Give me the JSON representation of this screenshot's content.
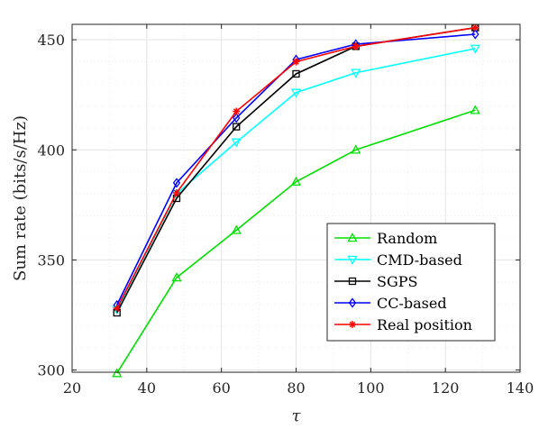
{
  "chart_data": {
    "type": "line",
    "xlabel": "τ",
    "ylabel": "Sum rate (bits/s/Hz)",
    "xlim": [
      20,
      140
    ],
    "ylim": [
      299,
      457
    ],
    "xticks": [
      20,
      40,
      60,
      80,
      100,
      120,
      140
    ],
    "yticks": [
      300,
      350,
      400,
      450
    ],
    "grid": true,
    "legend_position": "bottom-right",
    "x": [
      32,
      48,
      64,
      80,
      96,
      128
    ],
    "series": [
      {
        "name": "Random",
        "color": "#00e000",
        "marker": "triangle-up",
        "values": [
          298.5,
          342.0,
          363.5,
          385.5,
          400.0,
          418.0
        ]
      },
      {
        "name": "CMD-based",
        "color": "#00ffff",
        "marker": "triangle-down",
        "values": [
          327.5,
          380.0,
          403.5,
          426.0,
          435.0,
          446.0
        ]
      },
      {
        "name": "SGPS",
        "color": "#000000",
        "marker": "square",
        "values": [
          326.0,
          378.0,
          410.5,
          434.5,
          447.0,
          455.5
        ]
      },
      {
        "name": "CC-based",
        "color": "#0000ff",
        "marker": "diamond",
        "values": [
          329.5,
          385.0,
          414.5,
          441.0,
          448.0,
          452.5
        ]
      },
      {
        "name": "Real position",
        "color": "#ff0000",
        "marker": "asterisk",
        "values": [
          328.0,
          380.5,
          417.5,
          440.0,
          447.0,
          455.5
        ]
      }
    ]
  }
}
